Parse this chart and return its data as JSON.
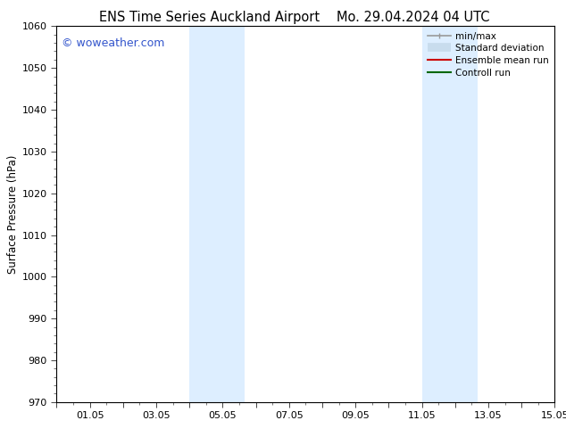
{
  "title_left": "ENS Time Series Auckland Airport",
  "title_right": "Mo. 29.04.2024 04 UTC",
  "ylabel": "Surface Pressure (hPa)",
  "ylim": [
    970,
    1060
  ],
  "yticks": [
    970,
    980,
    990,
    1000,
    1010,
    1020,
    1030,
    1040,
    1050,
    1060
  ],
  "xlim_min": 0.0,
  "xlim_max": 15.0,
  "xtick_positions": [
    0,
    1,
    2,
    3,
    4,
    5,
    6,
    7,
    8,
    9,
    10,
    11,
    12,
    13,
    14,
    15
  ],
  "xtick_labels": [
    "",
    "01.05",
    "",
    "03.05",
    "",
    "05.05",
    "",
    "07.05",
    "",
    "09.05",
    "",
    "11.05",
    "",
    "13.05",
    "",
    "15.05"
  ],
  "shaded_regions": [
    {
      "x_start": 4.0,
      "x_end": 5.67,
      "color": "#ddeeff"
    },
    {
      "x_start": 11.0,
      "x_end": 12.67,
      "color": "#ddeeff"
    }
  ],
  "watermark_text": "© woweather.com",
  "watermark_color": "#3355cc",
  "legend_items": [
    {
      "label": "min/max",
      "color": "#999999",
      "lw": 1.2,
      "style": "caps"
    },
    {
      "label": "Standard deviation",
      "color": "#c8dced",
      "lw": 7,
      "style": "thick"
    },
    {
      "label": "Ensemble mean run",
      "color": "#cc0000",
      "lw": 1.5,
      "style": "line"
    },
    {
      "label": "Controll run",
      "color": "#006600",
      "lw": 1.5,
      "style": "line"
    }
  ],
  "background_color": "#ffffff",
  "spine_color": "#000000",
  "title_fontsize": 10.5,
  "ylabel_fontsize": 8.5,
  "tick_fontsize": 8,
  "watermark_fontsize": 9,
  "legend_fontsize": 7.5
}
